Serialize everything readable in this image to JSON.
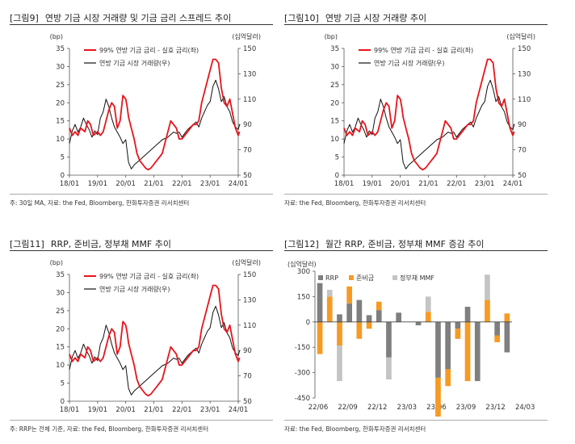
{
  "panels": [
    {
      "label": "[그림9]",
      "title": "연방 기금 시장 거래량 및 기금 금리 스프레드 추이",
      "note": "주: 30일 MA, 자료: the Fed, Bloomberg, 한화투자증권 리서치센터"
    },
    {
      "label": "[그림10]",
      "title": "연방 기금 시장 거래량 추이",
      "note": "자료: the Fed, Bloomberg, 한화투자증권 리서치센터"
    },
    {
      "label": "[그림11]",
      "title": "RRP, 준비금, 정부채 MMF 추이",
      "note": "주: RRP는 전체 기준, 자료: the Fed, Bloomberg, 한화투자증권 리서치센터"
    },
    {
      "label": "[그림12]",
      "title": "월간 RRP, 준비금, 정부채 MMF 증감 추이",
      "note": "자료: the Fed, Bloomberg, 한화투자증권 리서치센터"
    }
  ],
  "colors": {
    "spread": "#e8141b",
    "volume": "#111111",
    "rrp": "#7f7f7f",
    "reserves": "#f79a22",
    "mmf": "#c4c4c4"
  },
  "chart_data": [
    {
      "type": "line",
      "title": "연방 기금 시장 거래량 및 기금 금리 스프레드 추이",
      "left_unit": "(bp)",
      "right_unit": "(십억달러)",
      "categories": [
        "18/01",
        "19/01",
        "20/01",
        "21/01",
        "22/01",
        "23/01",
        "24/01"
      ],
      "ylim_left": [
        0,
        35
      ],
      "left_ticks": [
        0,
        5,
        10,
        15,
        20,
        25,
        30,
        35
      ],
      "ylim_right": [
        50,
        150
      ],
      "right_ticks": [
        50,
        70,
        90,
        110,
        130,
        150
      ],
      "series": [
        {
          "name": "99% 연방 기금 금리 - 실효 금리(좌)",
          "axis": "left",
          "x": [
            0,
            0.1,
            0.2,
            0.3,
            0.4,
            0.55,
            0.65,
            0.75,
            0.85,
            1.0,
            1.1,
            1.2,
            1.3,
            1.4,
            1.5,
            1.6,
            1.7,
            1.8,
            1.9,
            2.0,
            2.05,
            2.1,
            2.2,
            2.3,
            2.4,
            2.5,
            2.6,
            2.7,
            2.8,
            2.9,
            3.0,
            3.1,
            3.2,
            3.3,
            3.4,
            3.5,
            3.6,
            3.7,
            3.8,
            3.9,
            4.0,
            4.1,
            4.2,
            4.3,
            4.4,
            4.5,
            4.6,
            4.7,
            4.8,
            4.9,
            5.0,
            5.1,
            5.2,
            5.3,
            5.4,
            5.5,
            5.6,
            5.7,
            5.8,
            5.9,
            6.0,
            6.05
          ],
          "values": [
            13,
            11,
            12,
            11,
            13,
            12,
            15,
            14,
            11,
            12,
            11,
            12,
            15,
            18,
            20,
            19,
            13,
            15,
            22,
            21,
            19,
            16,
            13,
            10,
            6,
            4,
            3,
            2,
            1.5,
            2,
            3,
            4,
            5,
            6,
            9,
            12,
            15,
            14,
            13,
            10,
            10,
            11,
            12,
            13,
            14,
            14,
            15,
            20,
            23,
            26,
            29,
            32,
            32,
            31,
            24,
            20,
            19,
            21,
            17,
            13,
            11,
            12
          ]
        },
        {
          "name": "연방 기금 시장 거래량(우)",
          "axis": "right",
          "x": [
            0,
            0.1,
            0.2,
            0.3,
            0.4,
            0.5,
            0.6,
            0.7,
            0.8,
            0.9,
            1.0,
            1.1,
            1.2,
            1.3,
            1.4,
            1.5,
            1.6,
            1.7,
            1.8,
            1.9,
            2.0,
            2.1,
            2.2,
            2.3,
            2.4,
            2.5,
            2.6,
            2.7,
            2.8,
            2.9,
            3.0,
            3.1,
            3.2,
            3.3,
            3.4,
            3.5,
            3.6,
            3.7,
            3.8,
            3.9,
            4.0,
            4.1,
            4.2,
            4.3,
            4.4,
            4.5,
            4.6,
            4.7,
            4.8,
            4.9,
            5.0,
            5.1,
            5.2,
            5.3,
            5.4,
            5.5,
            5.6,
            5.7,
            5.8,
            5.9,
            6.0,
            6.05
          ],
          "values": [
            75,
            85,
            90,
            84,
            88,
            95,
            90,
            86,
            80,
            85,
            82,
            95,
            100,
            110,
            104,
            95,
            88,
            84,
            80,
            75,
            78,
            60,
            55,
            58,
            60,
            62,
            64,
            66,
            68,
            70,
            72,
            74,
            76,
            78,
            79,
            80,
            82,
            84,
            83,
            84,
            80,
            83,
            86,
            88,
            90,
            92,
            88,
            95,
            100,
            105,
            108,
            120,
            125,
            118,
            108,
            112,
            104,
            100,
            92,
            88,
            86,
            90
          ]
        }
      ]
    },
    {
      "type": "line",
      "title": "연방 기금 시장 거래량 추이",
      "left_unit": "(bp)",
      "right_unit": "(십억달러)",
      "categories": [
        "18/01",
        "19/01",
        "20/01",
        "21/01",
        "22/01",
        "23/01",
        "24/01"
      ],
      "ylim_left": [
        0,
        35
      ],
      "left_ticks": [
        0,
        5,
        10,
        15,
        20,
        25,
        30,
        35
      ],
      "ylim_right": [
        50,
        150
      ],
      "right_ticks": [
        50,
        70,
        90,
        110,
        130,
        150
      ],
      "series": [
        {
          "name": "99% 연방 기금 금리 - 실효 금리(좌)",
          "axis": "left",
          "x": [
            0,
            0.1,
            0.2,
            0.3,
            0.4,
            0.55,
            0.65,
            0.75,
            0.85,
            1.0,
            1.1,
            1.2,
            1.3,
            1.4,
            1.5,
            1.6,
            1.7,
            1.8,
            1.9,
            2.0,
            2.05,
            2.1,
            2.2,
            2.3,
            2.4,
            2.5,
            2.6,
            2.7,
            2.8,
            2.9,
            3.0,
            3.1,
            3.2,
            3.3,
            3.4,
            3.5,
            3.6,
            3.7,
            3.8,
            3.9,
            4.0,
            4.1,
            4.2,
            4.3,
            4.4,
            4.5,
            4.6,
            4.7,
            4.8,
            4.9,
            5.0,
            5.1,
            5.2,
            5.3,
            5.4,
            5.5,
            5.6,
            5.7,
            5.8,
            5.9,
            6.0,
            6.05
          ],
          "values": [
            13,
            11,
            12,
            11,
            13,
            12,
            15,
            14,
            11,
            12,
            11,
            12,
            15,
            18,
            20,
            19,
            13,
            15,
            22,
            21,
            19,
            16,
            13,
            10,
            6,
            4,
            3,
            2,
            1.5,
            2,
            3,
            4,
            5,
            6,
            9,
            12,
            15,
            14,
            13,
            10,
            10,
            11,
            12,
            13,
            14,
            14,
            15,
            20,
            23,
            26,
            29,
            32,
            32,
            31,
            24,
            20,
            19,
            21,
            17,
            13,
            11,
            12
          ]
        },
        {
          "name": "연방 기금 시장 거래량(우)",
          "axis": "right",
          "x": [
            0,
            0.1,
            0.2,
            0.3,
            0.4,
            0.5,
            0.6,
            0.7,
            0.8,
            0.9,
            1.0,
            1.1,
            1.2,
            1.3,
            1.4,
            1.5,
            1.6,
            1.7,
            1.8,
            1.9,
            2.0,
            2.1,
            2.2,
            2.3,
            2.4,
            2.5,
            2.6,
            2.7,
            2.8,
            2.9,
            3.0,
            3.1,
            3.2,
            3.3,
            3.4,
            3.5,
            3.6,
            3.7,
            3.8,
            3.9,
            4.0,
            4.1,
            4.2,
            4.3,
            4.4,
            4.5,
            4.6,
            4.7,
            4.8,
            4.9,
            5.0,
            5.1,
            5.2,
            5.3,
            5.4,
            5.5,
            5.6,
            5.7,
            5.8,
            5.9,
            6.0,
            6.05
          ],
          "values": [
            75,
            85,
            90,
            84,
            88,
            95,
            90,
            86,
            80,
            85,
            82,
            95,
            100,
            110,
            104,
            95,
            88,
            84,
            80,
            75,
            78,
            60,
            55,
            58,
            60,
            62,
            64,
            66,
            68,
            70,
            72,
            74,
            76,
            78,
            79,
            80,
            82,
            84,
            83,
            84,
            80,
            83,
            86,
            88,
            90,
            92,
            88,
            95,
            100,
            105,
            108,
            120,
            125,
            118,
            108,
            112,
            104,
            100,
            92,
            88,
            86,
            90
          ]
        }
      ]
    },
    {
      "type": "line",
      "title": "RRP, 준비금, 정부채 MMF 추이",
      "left_unit": "(bp)",
      "right_unit": "(십억달러)",
      "categories": [
        "18/01",
        "19/01",
        "20/01",
        "21/01",
        "22/01",
        "23/01",
        "24/01"
      ],
      "ylim_left": [
        0,
        35
      ],
      "left_ticks": [
        0,
        5,
        10,
        15,
        20,
        25,
        30,
        35
      ],
      "ylim_right": [
        50,
        150
      ],
      "right_ticks": [
        50,
        70,
        90,
        110,
        130,
        150
      ],
      "series": [
        {
          "name": "99% 연방 기금 금리 - 실효 금리(좌)",
          "axis": "left",
          "x": [
            0,
            0.1,
            0.2,
            0.3,
            0.4,
            0.55,
            0.65,
            0.75,
            0.85,
            1.0,
            1.1,
            1.2,
            1.3,
            1.4,
            1.5,
            1.6,
            1.7,
            1.8,
            1.9,
            2.0,
            2.05,
            2.1,
            2.2,
            2.3,
            2.4,
            2.5,
            2.6,
            2.7,
            2.8,
            2.9,
            3.0,
            3.1,
            3.2,
            3.3,
            3.4,
            3.5,
            3.6,
            3.7,
            3.8,
            3.9,
            4.0,
            4.1,
            4.2,
            4.3,
            4.4,
            4.5,
            4.6,
            4.7,
            4.8,
            4.9,
            5.0,
            5.1,
            5.2,
            5.3,
            5.4,
            5.5,
            5.6,
            5.7,
            5.8,
            5.9,
            6.0,
            6.05
          ],
          "values": [
            13,
            11,
            12,
            11,
            13,
            12,
            15,
            14,
            11,
            12,
            11,
            12,
            15,
            18,
            20,
            19,
            13,
            15,
            22,
            21,
            19,
            16,
            13,
            10,
            6,
            4,
            3,
            2,
            1.5,
            2,
            3,
            4,
            5,
            6,
            9,
            12,
            15,
            14,
            13,
            10,
            10,
            11,
            12,
            13,
            14,
            14,
            15,
            20,
            23,
            26,
            29,
            32,
            32,
            31,
            24,
            20,
            19,
            21,
            17,
            13,
            11,
            12
          ]
        },
        {
          "name": "연방 기금 시장 거래량(우)",
          "axis": "right",
          "x": [
            0,
            0.1,
            0.2,
            0.3,
            0.4,
            0.5,
            0.6,
            0.7,
            0.8,
            0.9,
            1.0,
            1.1,
            1.2,
            1.3,
            1.4,
            1.5,
            1.6,
            1.7,
            1.8,
            1.9,
            2.0,
            2.1,
            2.2,
            2.3,
            2.4,
            2.5,
            2.6,
            2.7,
            2.8,
            2.9,
            3.0,
            3.1,
            3.2,
            3.3,
            3.4,
            3.5,
            3.6,
            3.7,
            3.8,
            3.9,
            4.0,
            4.1,
            4.2,
            4.3,
            4.4,
            4.5,
            4.6,
            4.7,
            4.8,
            4.9,
            5.0,
            5.1,
            5.2,
            5.3,
            5.4,
            5.5,
            5.6,
            5.7,
            5.8,
            5.9,
            6.0,
            6.05
          ],
          "values": [
            75,
            85,
            90,
            84,
            88,
            95,
            90,
            86,
            80,
            85,
            82,
            95,
            100,
            110,
            104,
            95,
            88,
            84,
            80,
            75,
            78,
            60,
            55,
            58,
            60,
            62,
            64,
            66,
            68,
            70,
            72,
            74,
            76,
            78,
            79,
            80,
            82,
            84,
            83,
            84,
            80,
            83,
            86,
            88,
            90,
            92,
            88,
            95,
            100,
            105,
            108,
            120,
            125,
            118,
            108,
            112,
            104,
            100,
            92,
            88,
            86,
            90
          ]
        }
      ]
    },
    {
      "type": "bar",
      "title": "월간 RRP, 준비금, 정부채 MMF 증감 추이",
      "ylabel": "(십억달러)",
      "ylim": [
        -450,
        300
      ],
      "y_ticks": [
        300,
        150,
        0,
        -150,
        -300,
        -450
      ],
      "x_tick_labels": [
        "22/06",
        "22/09",
        "22/12",
        "23/03",
        "23/06",
        "23/09",
        "23/12",
        "24/03"
      ],
      "x_tick_positions": [
        0,
        3,
        6,
        9,
        12,
        15,
        18,
        21
      ],
      "legend": [
        "RRP",
        "준비금",
        "정부채 MMF"
      ],
      "categories": [
        "22/06",
        "22/07",
        "22/08",
        "22/09",
        "22/10",
        "22/11",
        "22/12",
        "23/01",
        "23/02",
        "23/03",
        "23/04",
        "23/05",
        "23/06",
        "23/07",
        "23/08",
        "23/09",
        "23/10",
        "23/11",
        "23/12",
        "24/01"
      ],
      "series": [
        {
          "name": "RRP",
          "values": [
            230,
            0,
            45,
            110,
            130,
            40,
            70,
            -210,
            55,
            0,
            -20,
            0,
            -330,
            -280,
            -40,
            90,
            -350,
            0,
            -80,
            -180
          ]
        },
        {
          "name": "준비금",
          "values": [
            -190,
            150,
            -140,
            100,
            -100,
            -40,
            50,
            0,
            0,
            0,
            0,
            60,
            -350,
            -100,
            -60,
            -350,
            0,
            130,
            -40,
            50
          ]
        },
        {
          "name": "정부채 MMF",
          "values": [
            0,
            40,
            -210,
            0,
            0,
            0,
            0,
            -130,
            0,
            0,
            0,
            90,
            0,
            0,
            0,
            0,
            0,
            150,
            0,
            0
          ]
        }
      ]
    }
  ]
}
